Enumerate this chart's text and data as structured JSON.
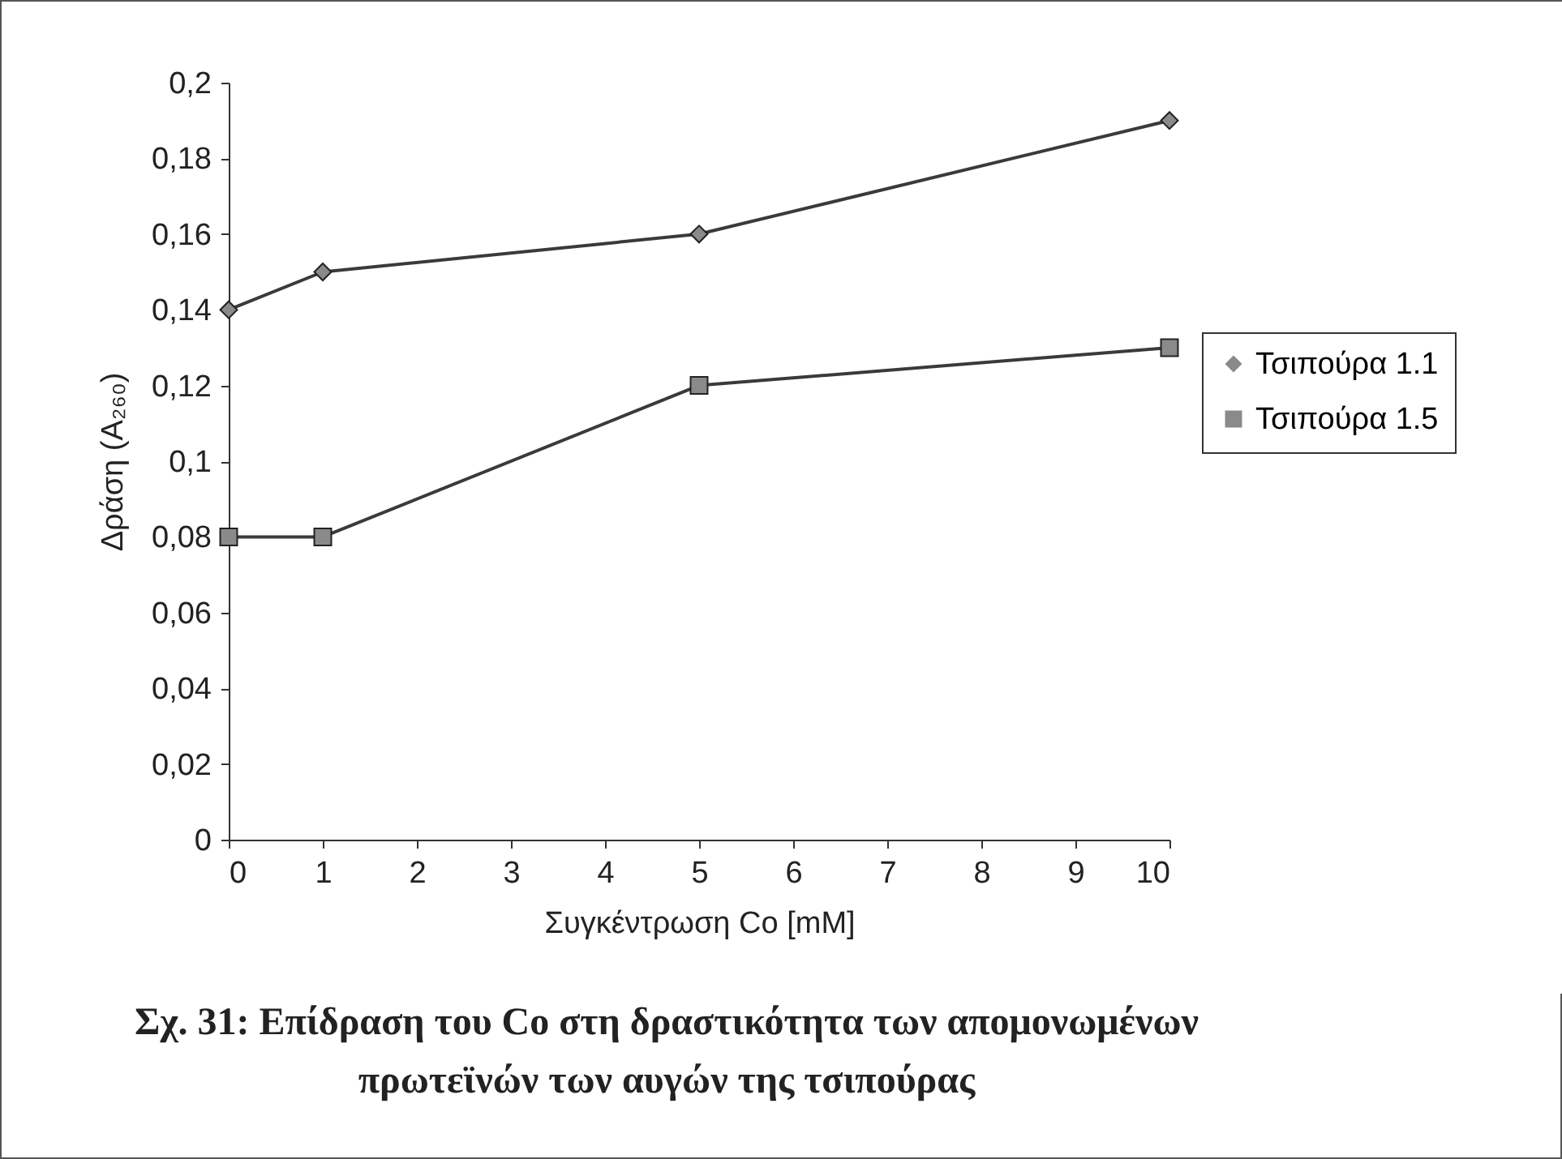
{
  "chart_data": {
    "type": "line",
    "xlabel": "Συγκέντρωση Co [mM]",
    "ylabel": "Δράση (A₂₆₀)",
    "x": [
      0,
      1,
      5,
      10
    ],
    "series": [
      {
        "name": "Τσιπούρα 1.1",
        "color": "#3a3a3a",
        "marker": "diamond",
        "values": [
          0.14,
          0.15,
          0.16,
          0.19
        ]
      },
      {
        "name": "Τσιπούρα 1.5",
        "color": "#3a3a3a",
        "marker": "square",
        "values": [
          0.08,
          0.08,
          0.12,
          0.13
        ]
      }
    ],
    "xlim": [
      0,
      10
    ],
    "xticks": [
      0,
      1,
      2,
      3,
      4,
      5,
      6,
      7,
      8,
      9,
      10
    ],
    "ylim": [
      0,
      0.2
    ],
    "yticks": [
      0,
      {
        "value": 0.02,
        "label": "0,02"
      },
      {
        "value": 0.04,
        "label": "0,04"
      },
      {
        "value": 0.06,
        "label": "0,06"
      },
      {
        "value": 0.08,
        "label": "0,08"
      },
      {
        "value": 0.1,
        "label": "0,1"
      },
      {
        "value": 0.12,
        "label": "0,12"
      },
      {
        "value": 0.14,
        "label": "0,14"
      },
      {
        "value": 0.16,
        "label": "0,16"
      },
      {
        "value": 0.18,
        "label": "0,18"
      },
      {
        "value": 0.2,
        "label": "0,2"
      }
    ],
    "grid": false,
    "legend": "right",
    "line_style": "solid",
    "annotations": [
      "Σχ. 31: Επίδραση του Co στη δραστικότητα των απομονωμένων πρωτεϊνών των αυγών της τσιπούρας"
    ]
  }
}
